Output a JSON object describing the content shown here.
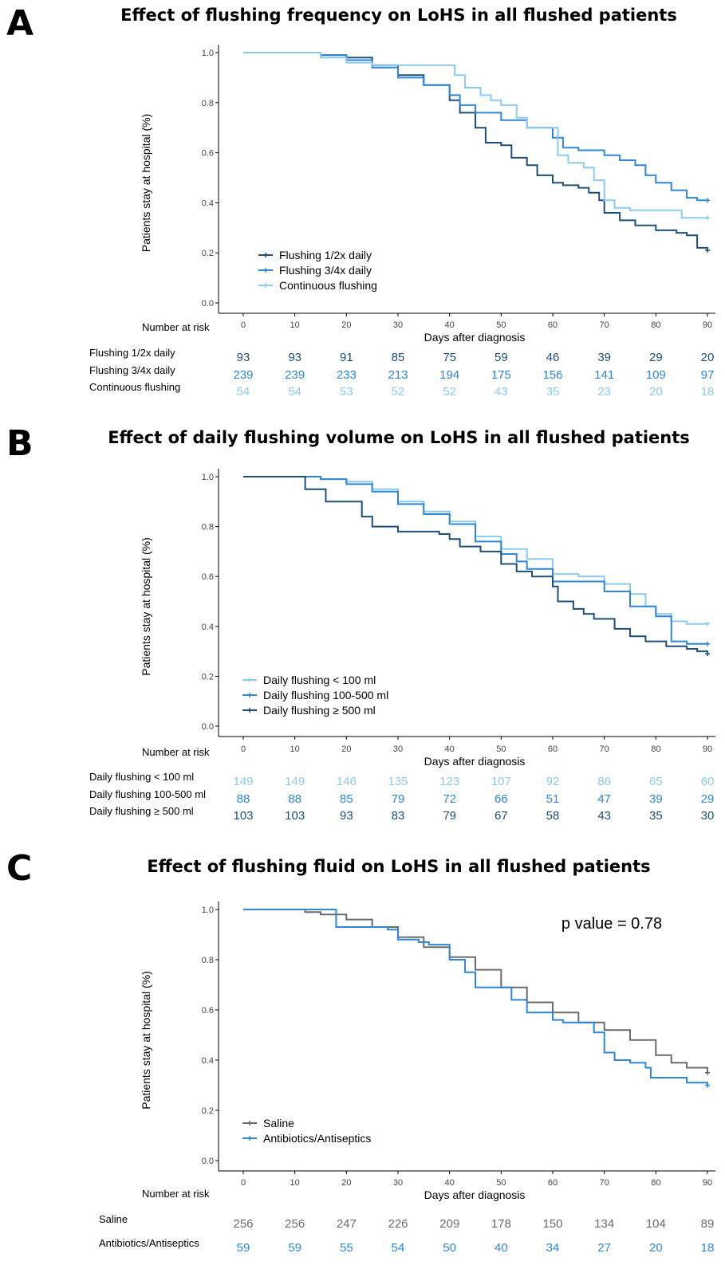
{
  "chart_data": [
    {
      "type": "line",
      "panel_letter": "A",
      "title": "Effect of flushing frequency on LoHS in all flushed patients",
      "xlabel": "Days after diagnosis",
      "ylabel": "Patients stay at hospital (%)",
      "xlim": [
        0,
        90
      ],
      "ylim": [
        0,
        1
      ],
      "x_ticks": [
        "0",
        "10",
        "20",
        "30",
        "40",
        "50",
        "60",
        "70",
        "80",
        "90"
      ],
      "y_ticks": [
        "0.0",
        "0.2",
        "0.4",
        "0.6",
        "0.8",
        "1.0"
      ],
      "grid": false,
      "legend_position": "bottom-left",
      "series": [
        {
          "name": "Flushing 1/2x daily",
          "color": "#1f4e79",
          "points": [
            [
              0,
              1.0
            ],
            [
              10,
              1.0
            ],
            [
              15,
              0.99
            ],
            [
              20,
              0.98
            ],
            [
              25,
              0.95
            ],
            [
              30,
              0.91
            ],
            [
              35,
              0.87
            ],
            [
              40,
              0.81
            ],
            [
              42,
              0.76
            ],
            [
              45,
              0.7
            ],
            [
              47,
              0.64
            ],
            [
              50,
              0.63
            ],
            [
              52,
              0.58
            ],
            [
              55,
              0.55
            ],
            [
              57,
              0.51
            ],
            [
              60,
              0.48
            ],
            [
              62,
              0.47
            ],
            [
              65,
              0.46
            ],
            [
              67,
              0.44
            ],
            [
              69,
              0.41
            ],
            [
              70,
              0.36
            ],
            [
              73,
              0.33
            ],
            [
              76,
              0.31
            ],
            [
              80,
              0.29
            ],
            [
              84,
              0.28
            ],
            [
              86,
              0.27
            ],
            [
              88,
              0.22
            ],
            [
              90,
              0.21
            ]
          ]
        },
        {
          "name": "Flushing 3/4x daily",
          "color": "#2f86d6",
          "points": [
            [
              0,
              1.0
            ],
            [
              10,
              1.0
            ],
            [
              15,
              0.99
            ],
            [
              20,
              0.97
            ],
            [
              25,
              0.94
            ],
            [
              30,
              0.9
            ],
            [
              35,
              0.87
            ],
            [
              40,
              0.83
            ],
            [
              42,
              0.79
            ],
            [
              45,
              0.76
            ],
            [
              50,
              0.73
            ],
            [
              55,
              0.7
            ],
            [
              60,
              0.66
            ],
            [
              62,
              0.62
            ],
            [
              65,
              0.61
            ],
            [
              70,
              0.59
            ],
            [
              73,
              0.57
            ],
            [
              76,
              0.55
            ],
            [
              78,
              0.51
            ],
            [
              80,
              0.48
            ],
            [
              83,
              0.45
            ],
            [
              86,
              0.42
            ],
            [
              88,
              0.41
            ],
            [
              90,
              0.41
            ]
          ]
        },
        {
          "name": "Continuous flushing",
          "color": "#8ccaf0",
          "points": [
            [
              0,
              1.0
            ],
            [
              10,
              1.0
            ],
            [
              15,
              0.98
            ],
            [
              20,
              0.96
            ],
            [
              25,
              0.95
            ],
            [
              30,
              0.95
            ],
            [
              35,
              0.95
            ],
            [
              40,
              0.95
            ],
            [
              41,
              0.91
            ],
            [
              43,
              0.86
            ],
            [
              46,
              0.83
            ],
            [
              48,
              0.81
            ],
            [
              50,
              0.79
            ],
            [
              53,
              0.74
            ],
            [
              55,
              0.7
            ],
            [
              59,
              0.7
            ],
            [
              61,
              0.59
            ],
            [
              63,
              0.56
            ],
            [
              66,
              0.54
            ],
            [
              68,
              0.49
            ],
            [
              70,
              0.41
            ],
            [
              72,
              0.38
            ],
            [
              75,
              0.37
            ],
            [
              80,
              0.37
            ],
            [
              85,
              0.34
            ],
            [
              90,
              0.34
            ]
          ]
        }
      ],
      "risk_table": {
        "header": "Number at risk",
        "rows": [
          {
            "label": "Flushing 1/2x daily",
            "color": "#1f4e79",
            "values": [
              "93",
              "93",
              "91",
              "85",
              "75",
              "59",
              "46",
              "39",
              "29",
              "20"
            ]
          },
          {
            "label": "Flushing 3/4x daily",
            "color": "#2f86d6",
            "values": [
              "239",
              "239",
              "233",
              "213",
              "194",
              "175",
              "156",
              "141",
              "109",
              "97"
            ]
          },
          {
            "label": "Continuous flushing",
            "color": "#8ccaf0",
            "values": [
              "54",
              "54",
              "53",
              "52",
              "52",
              "43",
              "35",
              "23",
              "20",
              "18"
            ]
          }
        ]
      }
    },
    {
      "type": "line",
      "panel_letter": "B",
      "title": "Effect of daily flushing volume on LoHS in all flushed patients",
      "xlabel": "Days after diagnosis",
      "ylabel": "Patients stay at hospital (%)",
      "xlim": [
        0,
        90
      ],
      "ylim": [
        0,
        1
      ],
      "x_ticks": [
        "0",
        "10",
        "20",
        "30",
        "40",
        "50",
        "60",
        "70",
        "80",
        "90"
      ],
      "y_ticks": [
        "0.0",
        "0.2",
        "0.4",
        "0.6",
        "0.8",
        "1.0"
      ],
      "grid": false,
      "legend_position": "bottom-left",
      "series": [
        {
          "name": "Daily flushing < 100 ml",
          "color": "#8ccaf0",
          "points": [
            [
              0,
              1.0
            ],
            [
              10,
              1.0
            ],
            [
              15,
              0.99
            ],
            [
              20,
              0.98
            ],
            [
              25,
              0.95
            ],
            [
              30,
              0.9
            ],
            [
              35,
              0.86
            ],
            [
              40,
              0.82
            ],
            [
              45,
              0.76
            ],
            [
              50,
              0.71
            ],
            [
              55,
              0.67
            ],
            [
              60,
              0.61
            ],
            [
              65,
              0.6
            ],
            [
              70,
              0.57
            ],
            [
              75,
              0.53
            ],
            [
              78,
              0.48
            ],
            [
              80,
              0.45
            ],
            [
              83,
              0.42
            ],
            [
              86,
              0.41
            ],
            [
              90,
              0.41
            ]
          ]
        },
        {
          "name": "Daily flushing 100-500 ml",
          "color": "#2f86d6",
          "points": [
            [
              0,
              1.0
            ],
            [
              10,
              1.0
            ],
            [
              15,
              0.99
            ],
            [
              20,
              0.97
            ],
            [
              25,
              0.94
            ],
            [
              30,
              0.89
            ],
            [
              35,
              0.85
            ],
            [
              40,
              0.81
            ],
            [
              45,
              0.74
            ],
            [
              48,
              0.74
            ],
            [
              50,
              0.69
            ],
            [
              53,
              0.66
            ],
            [
              55,
              0.63
            ],
            [
              60,
              0.58
            ],
            [
              65,
              0.58
            ],
            [
              70,
              0.54
            ],
            [
              75,
              0.48
            ],
            [
              80,
              0.44
            ],
            [
              83,
              0.34
            ],
            [
              86,
              0.33
            ],
            [
              90,
              0.33
            ]
          ]
        },
        {
          "name": "Daily flushing ≥ 500 ml",
          "color": "#1f4e79",
          "points": [
            [
              0,
              1.0
            ],
            [
              10,
              1.0
            ],
            [
              12,
              0.95
            ],
            [
              16,
              0.9
            ],
            [
              23,
              0.84
            ],
            [
              25,
              0.8
            ],
            [
              30,
              0.78
            ],
            [
              38,
              0.77
            ],
            [
              40,
              0.75
            ],
            [
              42,
              0.72
            ],
            [
              46,
              0.7
            ],
            [
              50,
              0.65
            ],
            [
              53,
              0.62
            ],
            [
              56,
              0.6
            ],
            [
              60,
              0.56
            ],
            [
              61,
              0.5
            ],
            [
              64,
              0.47
            ],
            [
              66,
              0.45
            ],
            [
              68,
              0.43
            ],
            [
              72,
              0.39
            ],
            [
              75,
              0.36
            ],
            [
              78,
              0.34
            ],
            [
              82,
              0.32
            ],
            [
              86,
              0.31
            ],
            [
              88,
              0.3
            ],
            [
              90,
              0.29
            ]
          ]
        }
      ],
      "risk_table": {
        "header": "Number at risk",
        "rows": [
          {
            "label": "Daily flushing < 100 ml",
            "color": "#8ccaf0",
            "values": [
              "149",
              "149",
              "146",
              "135",
              "123",
              "107",
              "92",
              "86",
              "65",
              "60"
            ]
          },
          {
            "label": "Daily flushing 100-500 ml",
            "color": "#2f86d6",
            "values": [
              "88",
              "88",
              "85",
              "79",
              "72",
              "66",
              "51",
              "47",
              "39",
              "29"
            ]
          },
          {
            "label": "Daily flushing ≥ 500 ml",
            "color": "#1f4e79",
            "values": [
              "103",
              "103",
              "93",
              "83",
              "79",
              "67",
              "58",
              "43",
              "35",
              "30"
            ]
          }
        ]
      }
    },
    {
      "type": "line",
      "panel_letter": "C",
      "title": "Effect of flushing fluid on LoHS in all flushed patients",
      "xlabel": "Days after diagnosis",
      "ylabel": "Patients stay at hospital (%)",
      "xlim": [
        0,
        90
      ],
      "ylim": [
        0,
        1
      ],
      "x_ticks": [
        "0",
        "10",
        "20",
        "30",
        "40",
        "50",
        "60",
        "70",
        "80",
        "90"
      ],
      "y_ticks": [
        "0.0",
        "0.2",
        "0.4",
        "0.6",
        "0.8",
        "1.0"
      ],
      "grid": false,
      "legend_position": "bottom-left",
      "annotation": "p value = 0.78",
      "series": [
        {
          "name": "Saline",
          "color": "#6b6b6b",
          "points": [
            [
              0,
              1.0
            ],
            [
              10,
              1.0
            ],
            [
              12,
              0.99
            ],
            [
              15,
              0.98
            ],
            [
              20,
              0.96
            ],
            [
              25,
              0.93
            ],
            [
              30,
              0.89
            ],
            [
              35,
              0.85
            ],
            [
              40,
              0.81
            ],
            [
              45,
              0.76
            ],
            [
              50,
              0.69
            ],
            [
              55,
              0.63
            ],
            [
              60,
              0.59
            ],
            [
              65,
              0.55
            ],
            [
              70,
              0.52
            ],
            [
              75,
              0.48
            ],
            [
              80,
              0.42
            ],
            [
              83,
              0.39
            ],
            [
              86,
              0.37
            ],
            [
              90,
              0.35
            ]
          ]
        },
        {
          "name": "Antibiotics/Antiseptics",
          "color": "#2f86d6",
          "points": [
            [
              0,
              1.0
            ],
            [
              16,
              1.0
            ],
            [
              18,
              0.93
            ],
            [
              26,
              0.93
            ],
            [
              28,
              0.92
            ],
            [
              30,
              0.88
            ],
            [
              34,
              0.87
            ],
            [
              36,
              0.86
            ],
            [
              40,
              0.8
            ],
            [
              43,
              0.75
            ],
            [
              45,
              0.69
            ],
            [
              50,
              0.69
            ],
            [
              52,
              0.64
            ],
            [
              55,
              0.59
            ],
            [
              60,
              0.56
            ],
            [
              62,
              0.55
            ],
            [
              66,
              0.55
            ],
            [
              68,
              0.51
            ],
            [
              70,
              0.43
            ],
            [
              72,
              0.4
            ],
            [
              75,
              0.39
            ],
            [
              78,
              0.37
            ],
            [
              79,
              0.33
            ],
            [
              82,
              0.33
            ],
            [
              86,
              0.31
            ],
            [
              90,
              0.3
            ]
          ]
        }
      ],
      "risk_table": {
        "header": "Number at risk",
        "rows": [
          {
            "label": "Saline",
            "color": "#6b6b6b",
            "values": [
              "256",
              "256",
              "247",
              "226",
              "209",
              "178",
              "150",
              "134",
              "104",
              "89"
            ]
          },
          {
            "label": "Antibiotics/Antiseptics",
            "color": "#2f86d6",
            "values": [
              "59",
              "59",
              "55",
              "54",
              "50",
              "40",
              "34",
              "27",
              "20",
              "18"
            ]
          }
        ]
      }
    }
  ]
}
